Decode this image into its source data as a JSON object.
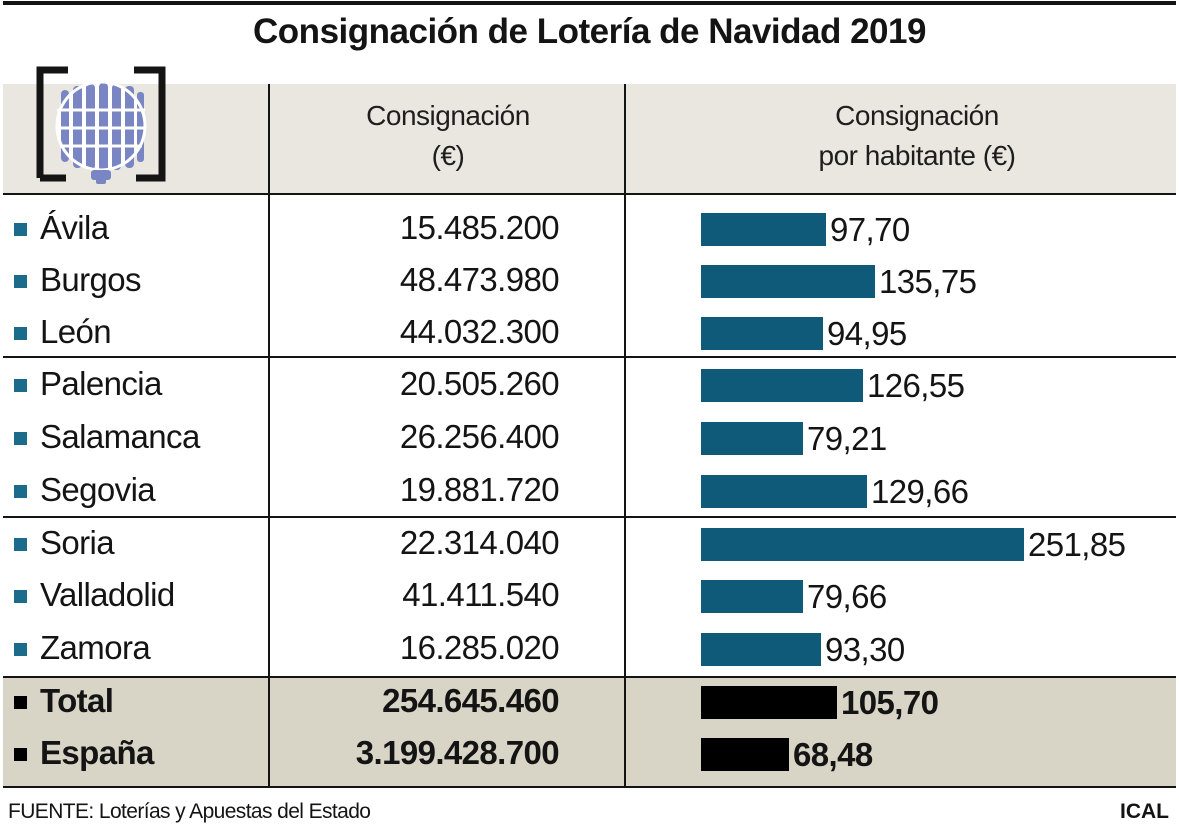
{
  "title": "Consignación de Lotería de Navidad 2019",
  "header": {
    "logo_icon": "loterias-globe-logo-icon",
    "col1_line1": "Consignación",
    "col1_line2": "(€)",
    "col2_line1": "Consignación",
    "col2_line2": "por habitante (€)"
  },
  "colors": {
    "bar": "#0e5a78",
    "bar_total": "#000000",
    "square": "#1b6b8a",
    "header_bg": "#eae7e1",
    "total_bg": "#d8d4c6",
    "logo_globe": "#7a86c4"
  },
  "chart_data": {
    "type": "bar",
    "title": "Consignación de Lotería de Navidad 2019",
    "orientation": "horizontal",
    "xlabel": "Consignación por habitante (€)",
    "ylabel": "",
    "xlim": [
      0,
      251.85
    ],
    "categories": [
      "Ávila",
      "Burgos",
      "León",
      "Palencia",
      "Salamanca",
      "Segovia",
      "Soria",
      "Valladolid",
      "Zamora",
      "Total",
      "España"
    ],
    "series": [
      {
        "name": "Consignación (€)",
        "labels": [
          "15.485.200",
          "48.473.980",
          "44.032.300",
          "20.505.260",
          "26.256.400",
          "19.881.720",
          "22.314.040",
          "41.411.540",
          "16.285.020",
          "254.645.460",
          "3.199.428.700"
        ]
      },
      {
        "name": "Consignación por habitante (€)",
        "values": [
          97.7,
          135.75,
          94.95,
          126.55,
          79.21,
          129.66,
          251.85,
          79.66,
          93.3,
          105.7,
          68.48
        ],
        "labels": [
          "97,70",
          "135,75",
          "94,95",
          "126,55",
          "79,21",
          "129,66",
          "251,85",
          "79,66",
          "93,30",
          "105,70",
          "68,48"
        ]
      }
    ],
    "rows": [
      {
        "name": "Ávila",
        "consignacion": "15.485.200",
        "per_capita": 97.7,
        "per_capita_label": "97,70",
        "bold": false
      },
      {
        "name": "Burgos",
        "consignacion": "48.473.980",
        "per_capita": 135.75,
        "per_capita_label": "135,75",
        "bold": false
      },
      {
        "name": "León",
        "consignacion": "44.032.300",
        "per_capita": 94.95,
        "per_capita_label": "94,95",
        "bold": false
      },
      {
        "name": "Palencia",
        "consignacion": "20.505.260",
        "per_capita": 126.55,
        "per_capita_label": "126,55",
        "bold": false
      },
      {
        "name": "Salamanca",
        "consignacion": "26.256.400",
        "per_capita": 79.21,
        "per_capita_label": "79,21",
        "bold": false
      },
      {
        "name": "Segovia",
        "consignacion": "19.881.720",
        "per_capita": 129.66,
        "per_capita_label": "129,66",
        "bold": false
      },
      {
        "name": "Soria",
        "consignacion": "22.314.040",
        "per_capita": 251.85,
        "per_capita_label": "251,85",
        "bold": false
      },
      {
        "name": "Valladolid",
        "consignacion": "41.411.540",
        "per_capita": 79.66,
        "per_capita_label": "79,66",
        "bold": false
      },
      {
        "name": "Zamora",
        "consignacion": "16.285.020",
        "per_capita": 93.3,
        "per_capita_label": "93,30",
        "bold": false
      },
      {
        "name": "Total",
        "consignacion": "254.645.460",
        "per_capita": 105.7,
        "per_capita_label": "105,70",
        "bold": true
      },
      {
        "name": "España",
        "consignacion": "3.199.428.700",
        "per_capita": 68.48,
        "per_capita_label": "68,48",
        "bold": true
      }
    ]
  },
  "footer": {
    "source": "FUENTE: Loterías y Apuestas del Estado",
    "brand": "ICAL"
  }
}
